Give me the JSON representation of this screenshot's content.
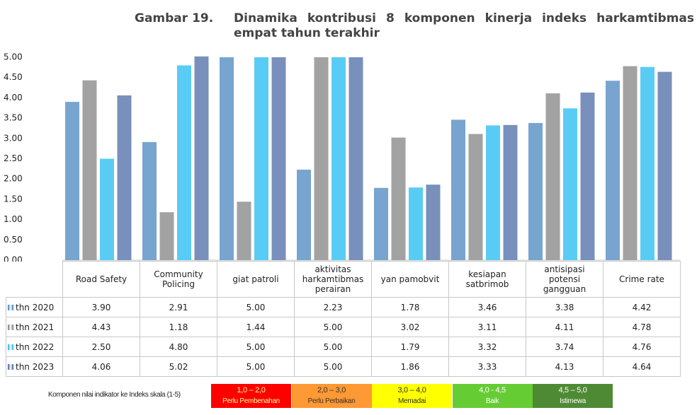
{
  "chart_data": {
    "type": "bar",
    "figure_label": "Gambar 19.",
    "title": "Dinamika kontribusi 8 komponen kinerja indeks harkamtibmas empat tahun terakhir",
    "categories": [
      "Road Safety",
      "Community Policing",
      "giat patroli",
      "aktivitas harkamtibmas perairan",
      "yan pamobvit",
      "kesiapan satbrimob",
      "antisipasi potensi gangguan",
      "Crime rate"
    ],
    "series": [
      {
        "name": "thn 2020",
        "color": "#2e75b6",
        "values": [
          3.9,
          2.91,
          5.0,
          2.23,
          1.78,
          3.46,
          3.38,
          4.42
        ],
        "value_labels": [
          "3.90",
          "2.91",
          "5.00",
          "2.23",
          "1.78",
          "3.46",
          "3.38",
          "4.42"
        ]
      },
      {
        "name": "thn 2021",
        "color": "#707070",
        "values": [
          4.43,
          1.18,
          1.44,
          5.0,
          3.02,
          3.11,
          4.11,
          4.78
        ],
        "value_labels": [
          "4.43",
          "1.18",
          "1.44",
          "5.00",
          "3.02",
          "3.11",
          "4.11",
          "4.78"
        ]
      },
      {
        "name": "thn 2022",
        "color": "#00b0f0",
        "values": [
          2.5,
          4.8,
          5.0,
          5.0,
          1.79,
          3.32,
          3.74,
          4.76
        ],
        "value_labels": [
          "2.50",
          "4.80",
          "5.00",
          "5.00",
          "1.79",
          "3.32",
          "3.74",
          "4.76"
        ]
      },
      {
        "name": "thn 2023",
        "color": "#2f5597",
        "values": [
          4.06,
          5.02,
          5.0,
          5.0,
          1.86,
          3.33,
          4.13,
          4.64
        ],
        "value_labels": [
          "4.06",
          "5.02",
          "5.00",
          "5.00",
          "1.86",
          "3.33",
          "4.13",
          "4.64"
        ]
      }
    ],
    "ylim": [
      0,
      5
    ],
    "yticks": [
      {
        "value": 0,
        "label": "0.00"
      },
      {
        "value": 0.5,
        "label": "0.50"
      },
      {
        "value": 1,
        "label": "1.00"
      },
      {
        "value": 1.5,
        "label": "1.50"
      },
      {
        "value": 2,
        "label": "2.00"
      },
      {
        "value": 2.5,
        "label": "2.50"
      },
      {
        "value": 3,
        "label": "3.00"
      },
      {
        "value": 3.5,
        "label": "3.50"
      },
      {
        "value": 4,
        "label": "4.00"
      },
      {
        "value": 4.5,
        "label": "4.50"
      },
      {
        "value": 5,
        "label": "5.00"
      }
    ],
    "grid": false,
    "scale_legend": {
      "label": "Komponen nilai indikator ke Indeks skala (1-5)",
      "items": [
        {
          "range": "1,0 – 2,0",
          "text": "Perlu Pembenahan",
          "color": "#ff0000",
          "text_color": "#ffff99"
        },
        {
          "range": "2,0 – 3,0",
          "text": "Perlu Perbaikan",
          "color": "#ff9933",
          "text_color": "#333333"
        },
        {
          "range": "3,0 – 4,0",
          "text": "Memadai",
          "color": "#ffff00",
          "text_color": "#333333"
        },
        {
          "range": "4,0 - 4,5",
          "text": "Baik",
          "color": "#66cc33",
          "text_color": "#ffffff"
        },
        {
          "range": "4,5 – 5,0",
          "text": "Istimewa",
          "color": "#4e8a34",
          "text_color": "#ffffff"
        }
      ]
    }
  }
}
